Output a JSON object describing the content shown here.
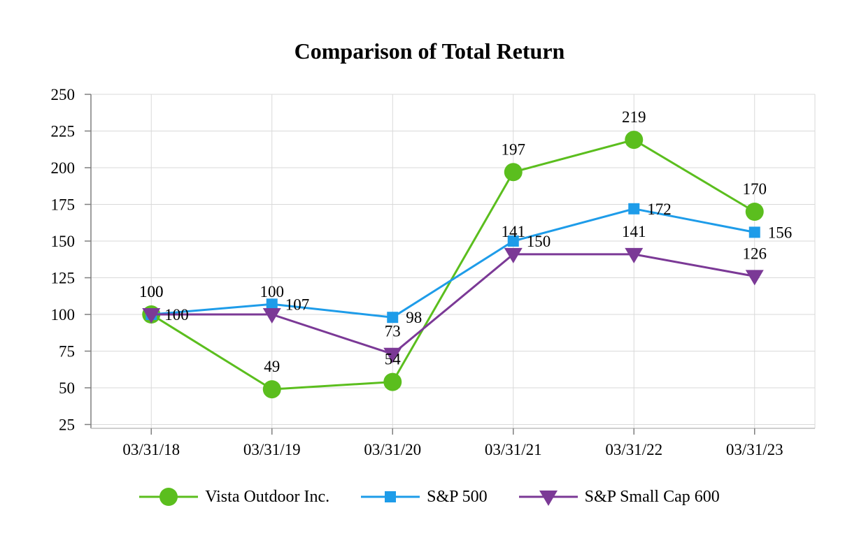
{
  "title": "Comparison of Total Return",
  "chart_data": {
    "type": "line",
    "title": "Comparison of Total Return",
    "categories": [
      "03/31/18",
      "03/31/19",
      "03/31/20",
      "03/31/21",
      "03/31/22",
      "03/31/23"
    ],
    "ylim": [
      25,
      250
    ],
    "ytick_interval": 25,
    "yticks": [
      250,
      225,
      200,
      175,
      150,
      125,
      100,
      75,
      50,
      25
    ],
    "grid": true,
    "legend_position": "bottom",
    "series": [
      {
        "name": "Vista Outdoor Inc.",
        "marker": "circle",
        "color": "#5BBE1E",
        "values": [
          100,
          49,
          54,
          197,
          219,
          170
        ],
        "point_labels": [
          "100",
          "49",
          "54",
          "197",
          "219",
          "170"
        ],
        "label_placement": "above"
      },
      {
        "name": "S&P 500",
        "marker": "square",
        "color": "#1E9CE9",
        "values": [
          100,
          107,
          98,
          150,
          172,
          156
        ],
        "point_labels": [
          "100",
          "107",
          "98",
          "150",
          "172",
          "156"
        ],
        "label_placement": "right"
      },
      {
        "name": "S&P Small Cap 600",
        "marker": "triangle-down",
        "color": "#7B3996",
        "values": [
          100,
          100,
          73,
          141,
          141,
          126
        ],
        "point_labels": [
          "100",
          "100",
          "73",
          "141",
          "141",
          "126"
        ],
        "label_placement": "above"
      }
    ]
  },
  "colors": {
    "background": "#FFFFFF",
    "gridline": "#D9D9D9",
    "y_axis": "#7F7F7F",
    "x_axis": "#BFBFBF",
    "tick": "#7F7F7F",
    "text": "#000000"
  }
}
